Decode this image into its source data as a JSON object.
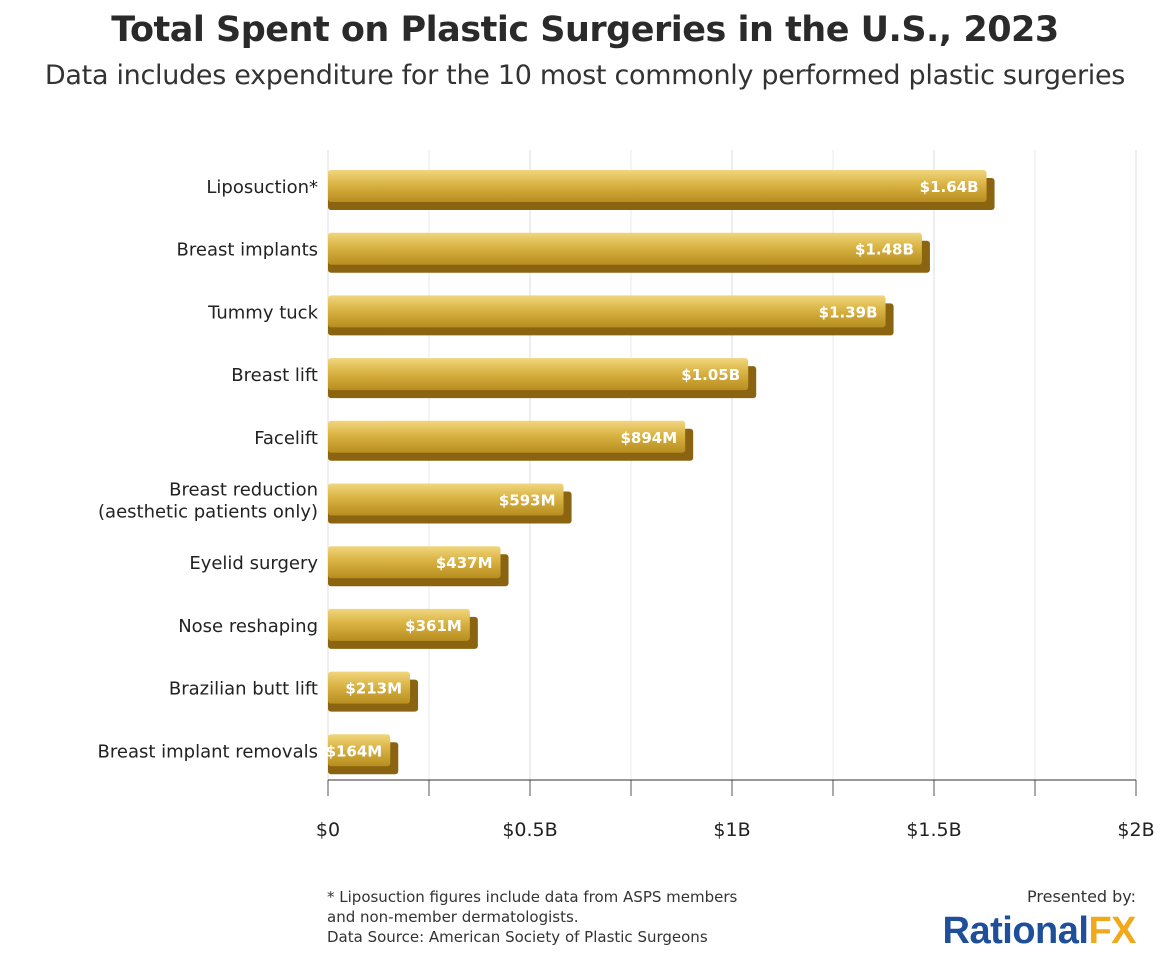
{
  "chart_data": {
    "type": "bar",
    "orientation": "horizontal",
    "title": "Total Spent on Plastic Surgeries in the U.S., 2023",
    "subtitle": "Data includes expenditure for the 10 most commonly performed plastic surgeries",
    "categories": [
      [
        "Liposuction*"
      ],
      [
        "Breast implants"
      ],
      [
        "Tummy tuck"
      ],
      [
        "Breast lift"
      ],
      [
        "Facelift"
      ],
      [
        "Breast reduction",
        "(aesthetic patients only)"
      ],
      [
        "Eyelid surgery"
      ],
      [
        "Nose reshaping"
      ],
      [
        "Brazilian butt lift"
      ],
      [
        "Breast implant removals"
      ]
    ],
    "values": [
      1.64,
      1.48,
      1.39,
      1.05,
      0.894,
      0.593,
      0.437,
      0.361,
      0.213,
      0.164
    ],
    "value_labels": [
      "$1.64B",
      "$1.48B",
      "$1.39B",
      "$1.05B",
      "$894M",
      "$593M",
      "$437M",
      "$361M",
      "$213M",
      "$164M"
    ],
    "value_unit": "billions USD",
    "xlim": [
      0,
      2
    ],
    "xticks": [
      0,
      0.5,
      1,
      1.5,
      2
    ],
    "xtick_labels": [
      "$0",
      "$0.5B",
      "$1B",
      "$1.5B",
      "$2B"
    ],
    "grid": true,
    "bar_color": "#c9a233",
    "bar_shadow_color": "#8a6410",
    "xlabel": "",
    "ylabel": ""
  },
  "footnote": {
    "line1": "* Liposuction figures include data from ASPS members",
    "line2": "and non-member dermatologists.",
    "line3": "Data Source: American Society of Plastic Surgeons"
  },
  "branding": {
    "presented_by": "Presented by:",
    "logo_part1": "Rational",
    "logo_part2": "FX"
  }
}
